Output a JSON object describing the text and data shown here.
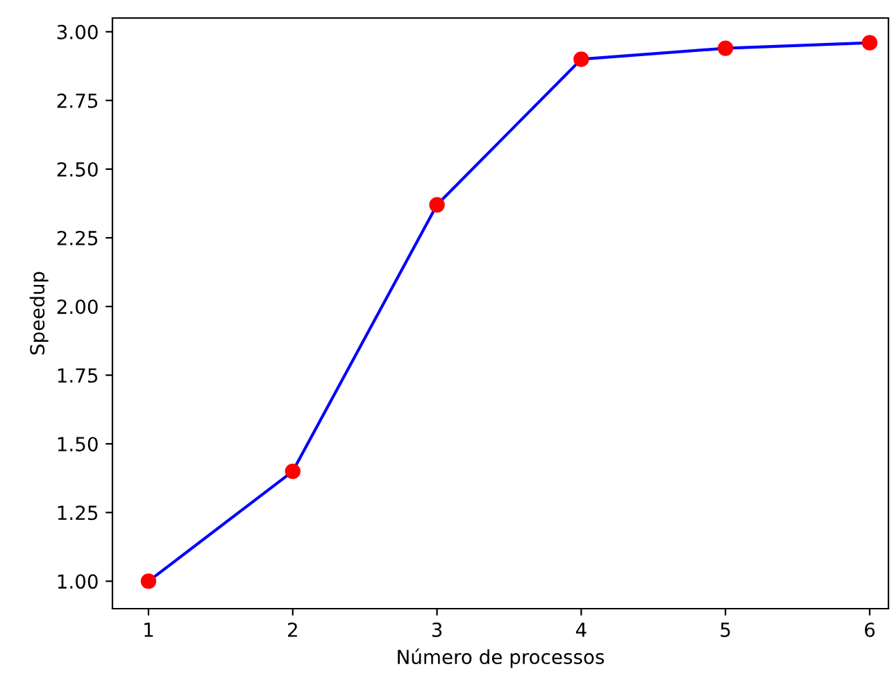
{
  "chart_data": {
    "type": "line",
    "xlabel": "Número de processos",
    "ylabel": "Speedup",
    "x": [
      1,
      2,
      3,
      4,
      5,
      6
    ],
    "series": [
      {
        "color": "#0000ff",
        "values": [
          1.0,
          1.4,
          2.37,
          2.9,
          2.94,
          2.96
        ]
      },
      {
        "type": "scatter",
        "color": "#ff0000",
        "marker": "circle",
        "values": [
          1.0,
          1.4,
          2.37,
          2.9,
          2.94,
          2.96
        ]
      }
    ],
    "xlim": [
      0.75,
      6.13
    ],
    "xticks": [
      1,
      2,
      3,
      4,
      5,
      6
    ],
    "ylim": [
      0.9,
      3.05
    ],
    "yticks": [
      {
        "value": 1.0,
        "label": "1.00"
      },
      {
        "value": 1.25,
        "label": "1.25"
      },
      {
        "value": 1.5,
        "label": "1.50"
      },
      {
        "value": 1.75,
        "label": "1.75"
      },
      {
        "value": 2.0,
        "label": "2.00"
      },
      {
        "value": 2.25,
        "label": "2.25"
      },
      {
        "value": 2.5,
        "label": "2.50"
      },
      {
        "value": 2.75,
        "label": "2.75"
      },
      {
        "value": 3.0,
        "label": "3.00"
      }
    ],
    "grid": false,
    "legend": false
  }
}
